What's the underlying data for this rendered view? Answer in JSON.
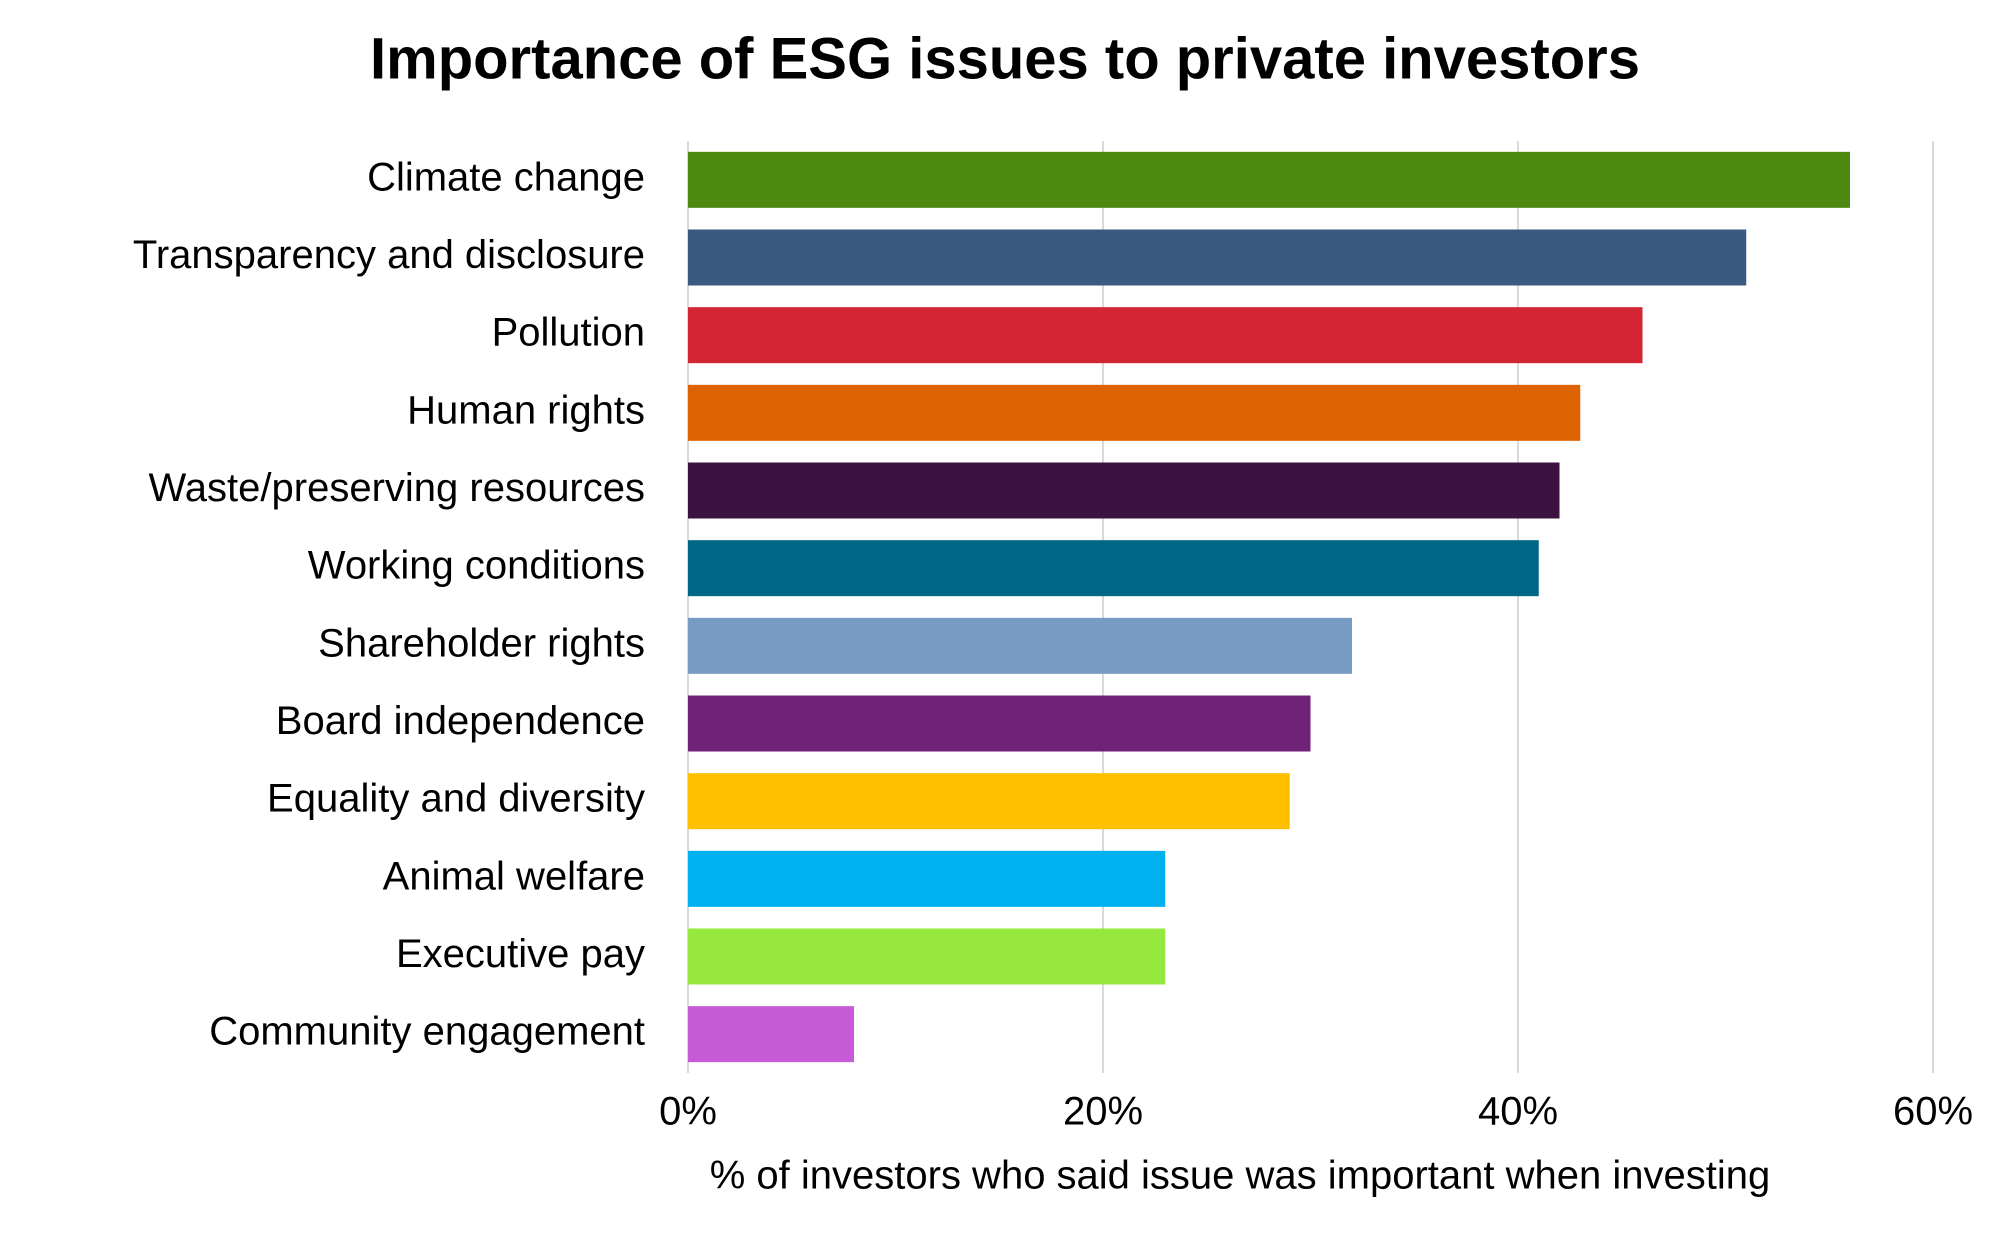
{
  "chart_data": {
    "type": "bar",
    "orientation": "horizontal",
    "title": "Importance of ESG issues to private investors",
    "x_label": "% of investors who said issue was important when investing",
    "categories": [
      "Climate change",
      "Transparency and disclosure",
      "Pollution",
      "Human rights",
      "Waste/preserving resources",
      "Working conditions",
      "Shareholder rights",
      "Board independence",
      "Equality and diversity",
      "Animal welfare",
      "Executive pay",
      "Community engagement"
    ],
    "values": [
      56,
      51,
      46,
      43,
      42,
      41,
      32,
      30,
      29,
      23,
      23,
      8
    ],
    "colors": [
      "#4e8a12",
      "#3a5a80",
      "#d42535",
      "#dd6200",
      "#3b1240",
      "#006685",
      "#789bc4",
      "#6f2278",
      "#ffc000",
      "#00b0ef",
      "#97e83e",
      "#c55bd6"
    ],
    "xlim": [
      0,
      60
    ],
    "xticks": [
      {
        "value": 0,
        "label": "0%"
      },
      {
        "value": 20,
        "label": "20%"
      },
      {
        "value": 40,
        "label": "40%"
      },
      {
        "value": 60,
        "label": "60%"
      }
    ],
    "grid": true
  }
}
